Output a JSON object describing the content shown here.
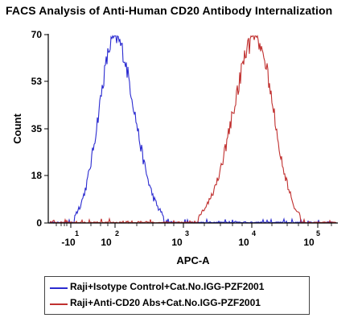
{
  "chart_data": {
    "type": "line",
    "title": "FACS Analysis of Anti-Human CD20 Antibody Internalization",
    "xlabel": "APC-A",
    "ylabel": "Count",
    "x_scale": "biexponential (log)",
    "ylim": [
      0,
      70
    ],
    "y_ticks": [
      "0",
      "18",
      "35",
      "53",
      "70"
    ],
    "x_ticks": [
      {
        "base": "-10",
        "exp": "1"
      },
      {
        "base": "10",
        "exp": "2"
      },
      {
        "base": "10",
        "exp": "3"
      },
      {
        "base": "10",
        "exp": "4"
      },
      {
        "base": "10",
        "exp": "5"
      }
    ],
    "grid": false,
    "legend_position": "bottom",
    "series": [
      {
        "name": "Raji+Isotype Control+Cat.No.IGG-PZF2001",
        "color": "#2b2bd0",
        "peak_count": 69,
        "peak_at": "approx. 10^2"
      },
      {
        "name": "Raji+Anti-CD20 Abs+Cat.No.IGG-PZF2001",
        "color": "#c0302f",
        "peak_count": 69,
        "peak_at": "approx. 1.5×10^4"
      }
    ]
  }
}
